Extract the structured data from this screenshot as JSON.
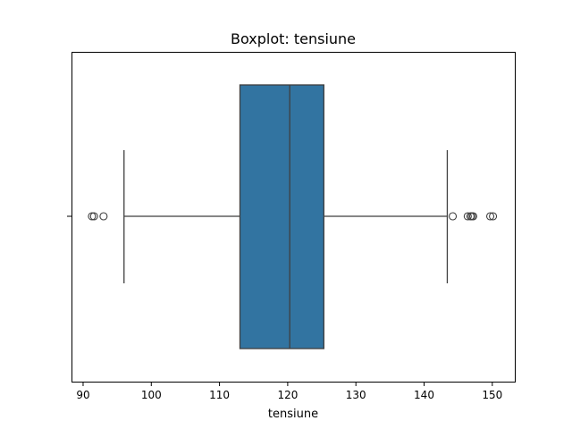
{
  "chart_data": {
    "type": "box",
    "title": "Boxplot: tensiune",
    "xlabel": "tensiune",
    "ylabel": "",
    "orientation": "horizontal",
    "xlim": [
      88.3,
      153.3
    ],
    "xticks": [
      90,
      100,
      110,
      120,
      130,
      140,
      150
    ],
    "xtick_labels": [
      "90",
      "100",
      "110",
      "120",
      "130",
      "140",
      "150"
    ],
    "grid": false,
    "box": {
      "whisker_low": 96.0,
      "q1": 113.0,
      "median": 120.3,
      "q3": 125.3,
      "whisker_high": 143.4
    },
    "outliers": [
      91.3,
      91.6,
      93.0,
      144.2,
      146.4,
      146.8,
      147.0,
      147.2,
      149.7,
      150.1
    ],
    "colors": {
      "box_fill": "#3274a1",
      "line": "#3f3f3f",
      "outlier_edge": "#3f3f3f"
    }
  }
}
